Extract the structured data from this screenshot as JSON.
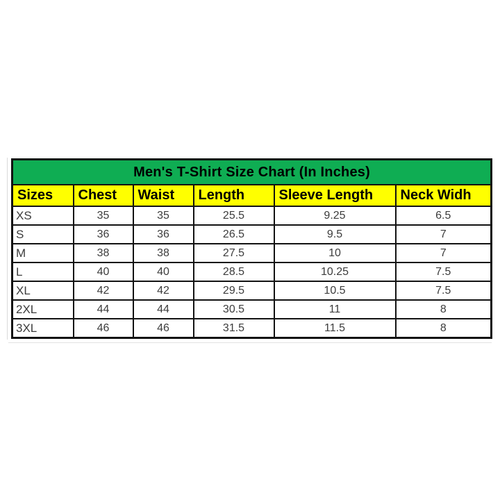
{
  "chart_data": {
    "type": "table",
    "title": "Men's T-Shirt Size Chart (In Inches)",
    "columns": [
      "Sizes",
      "Chest",
      "Waist",
      "Length",
      "Sleeve Length",
      "Neck Widh"
    ],
    "rows": [
      [
        "XS",
        "35",
        "35",
        "25.5",
        "9.25",
        "6.5"
      ],
      [
        "S",
        "36",
        "36",
        "26.5",
        "9.5",
        "7"
      ],
      [
        "M",
        "38",
        "38",
        "27.5",
        "10",
        "7"
      ],
      [
        "L",
        "40",
        "40",
        "28.5",
        "10.25",
        "7.5"
      ],
      [
        "XL",
        "42",
        "42",
        "29.5",
        "10.5",
        "7.5"
      ],
      [
        "2XL",
        "44",
        "44",
        "30.5",
        "11",
        "8"
      ],
      [
        "3XL",
        "46",
        "46",
        "31.5",
        "11.5",
        "8"
      ]
    ]
  },
  "colors": {
    "title_background": "#0fad53",
    "header_background": "#ffff00",
    "border": "#121212",
    "title_text": "#000000",
    "cell_text": "#3c3c3c",
    "page_background": "#ffffff"
  }
}
